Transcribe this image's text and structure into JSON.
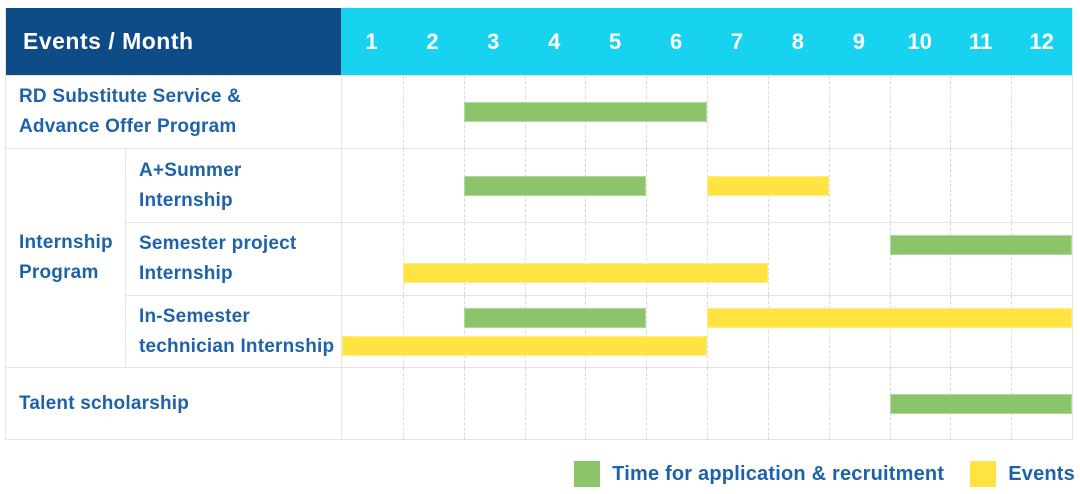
{
  "colors": {
    "header_bg": "#0d4c87",
    "month_header_bg": "#17d3f0",
    "label_text": "#1e63aa",
    "recruitment_green": "#8bc46a",
    "events_yellow": "#ffe341",
    "grid_line": "#e4e4e4",
    "grid_line_vertical": "#d9d9d9"
  },
  "chart_data": {
    "type": "table",
    "title": "Events / Month",
    "x_axis_label": "Month",
    "x_ticks": [
      "1",
      "2",
      "3",
      "4",
      "5",
      "6",
      "7",
      "8",
      "9",
      "10",
      "11",
      "12"
    ],
    "x_range": [
      1,
      12
    ],
    "legend_position": "bottom-right",
    "sections": [
      {
        "kind": "row",
        "name": "rd-substitute-service",
        "label": "RD Substitute Service &\nAdvance Offer Program",
        "lines": [
          [
            {
              "series": "recruitment",
              "start_month": 3,
              "end_month": 6
            }
          ]
        ]
      },
      {
        "kind": "group",
        "name": "internship-program",
        "label": "Internship\nProgram",
        "rows": [
          {
            "name": "a-plus-summer-internship",
            "label": "A+Summer\nInternship",
            "lines": [
              [
                {
                  "series": "recruitment",
                  "start_month": 3,
                  "end_month": 5
                },
                {
                  "series": "events",
                  "start_month": 7,
                  "end_month": 8
                }
              ]
            ]
          },
          {
            "name": "semester-project-internship",
            "label": "Semester project\nInternship",
            "lines": [
              [
                {
                  "series": "recruitment",
                  "start_month": 10,
                  "end_month": 12
                }
              ],
              [
                {
                  "series": "events",
                  "start_month": 2,
                  "end_month": 7
                }
              ]
            ]
          },
          {
            "name": "in-semester-technician-internship",
            "label": "In-Semester\ntechnician Internship",
            "lines": [
              [
                {
                  "series": "recruitment",
                  "start_month": 3,
                  "end_month": 5
                },
                {
                  "series": "events",
                  "start_month": 7,
                  "end_month": 12
                }
              ],
              [
                {
                  "series": "events",
                  "start_month": 1,
                  "end_month": 6
                }
              ]
            ]
          }
        ]
      },
      {
        "kind": "row",
        "name": "talent-scholarship",
        "label": "Talent scholarship",
        "lines": [
          [
            {
              "series": "recruitment",
              "start_month": 10,
              "end_month": 12
            }
          ]
        ]
      }
    ],
    "legend": [
      {
        "series": "recruitment",
        "label": "Time for application & recruitment"
      },
      {
        "series": "events",
        "label": "Events"
      }
    ]
  }
}
